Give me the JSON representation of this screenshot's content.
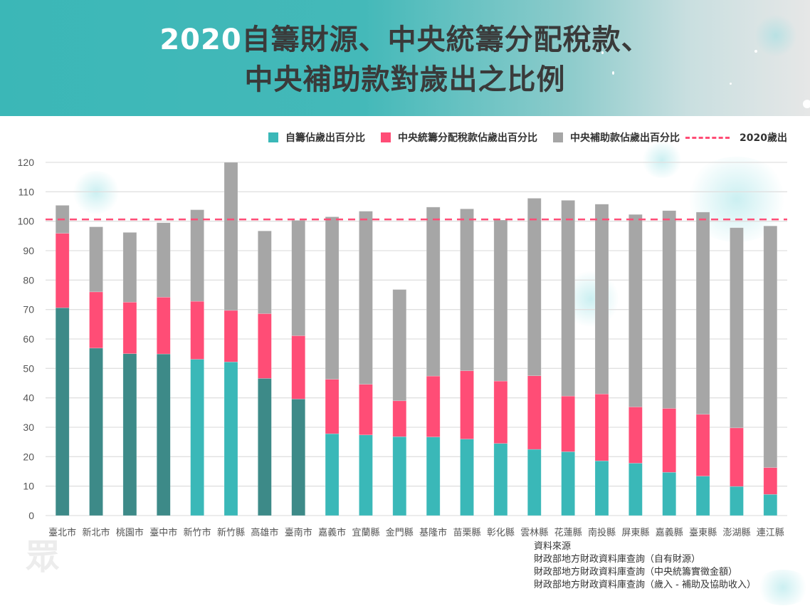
{
  "header": {
    "title_year": "2020",
    "title_line1": "自籌財源、中央統籌分配稅款、",
    "title_line2": "中央補助款對歲出之比例"
  },
  "legend": [
    {
      "label": "自籌佔歲出百分比",
      "color": "#3ab8b8"
    },
    {
      "label": "中央統籌分配稅款佔歲出百分比",
      "color": "#ff4d76"
    },
    {
      "label": "中央補助款佔歲出百分比",
      "color": "#a6a6a6"
    },
    {
      "label": "2020歲出",
      "color": "#ff4d76",
      "style": "dashed"
    }
  ],
  "source": {
    "heading": "資料來源",
    "lines": [
      "財政部地方財政資料庫查詢（自有財源）",
      "財政部地方財政資料庫查詢（中央統籌實徵金額）",
      "財政部地方財政資料庫查詢（歲入 - 補助及協助收入）"
    ]
  },
  "watermark": "眾",
  "chart_data": {
    "type": "bar",
    "stacked": true,
    "title": "2020自籌財源、中央統籌分配稅款、中央補助款對歲出之比例",
    "xlabel": "",
    "ylabel": "",
    "ylim": [
      0,
      120
    ],
    "yticks": [
      0,
      10,
      20,
      30,
      40,
      50,
      60,
      70,
      80,
      90,
      100,
      110,
      120
    ],
    "grid": true,
    "legend_position": "top-right",
    "categories": [
      "臺北市",
      "新北市",
      "桃園市",
      "臺中市",
      "新竹市",
      "新竹縣",
      "高雄市",
      "臺南市",
      "嘉義市",
      "宜蘭縣",
      "金門縣",
      "基隆市",
      "苗栗縣",
      "彰化縣",
      "雲林縣",
      "花蓮縣",
      "南投縣",
      "屏東縣",
      "嘉義縣",
      "臺東縣",
      "澎湖縣",
      "連江縣"
    ],
    "special_municipalities": [
      "臺北市",
      "新北市",
      "桃園市",
      "臺中市",
      "高雄市",
      "臺南市"
    ],
    "colors": {
      "self_municipality": "#3d8a88",
      "self_other": "#3ab8b8",
      "tax": "#ff4d76",
      "subsidy": "#a6a6a6",
      "reference_line": "#ff4d76"
    },
    "series": [
      {
        "name": "自籌佔歲出百分比",
        "values": [
          70.6,
          56.9,
          55.0,
          54.9,
          53.1,
          52.2,
          46.6,
          39.6,
          27.8,
          27.4,
          26.8,
          26.7,
          26.0,
          24.5,
          22.5,
          21.7,
          18.6,
          17.8,
          14.7,
          13.4,
          9.9,
          7.2
        ]
      },
      {
        "name": "中央統籌分配稅款佔歲出百分比",
        "values": [
          25.3,
          19.1,
          17.5,
          19.3,
          19.7,
          17.5,
          22.0,
          21.5,
          18.5,
          17.2,
          12.2,
          20.7,
          23.2,
          21.2,
          25.0,
          18.9,
          22.7,
          19.1,
          21.7,
          21.0,
          19.9,
          9.1
        ]
      },
      {
        "name": "中央補助款佔歲出百分比",
        "values": [
          9.5,
          22.1,
          23.7,
          25.3,
          31.1,
          50.6,
          28.1,
          39.2,
          55.2,
          58.8,
          37.8,
          57.4,
          55.0,
          54.7,
          60.3,
          66.5,
          64.5,
          65.4,
          67.2,
          68.7,
          68.0,
          82.1
        ]
      }
    ],
    "reference_line": {
      "name": "2020歲出",
      "value": 100.6
    }
  }
}
